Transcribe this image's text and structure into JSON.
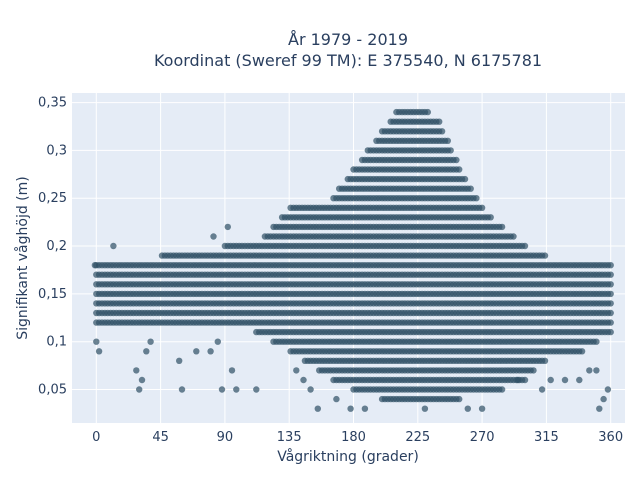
{
  "chart_data": {
    "type": "scatter",
    "title": [
      "År 1979 - 2019",
      "Koordinat (Sweref 99 TM): E 375540, N 6175781"
    ],
    "xlabel": "Vågriktning (grader)",
    "ylabel": "Signifikant våghöjd (m)",
    "xlim": [
      -17,
      370
    ],
    "ylim": [
      0.015,
      0.36
    ],
    "xticks": [
      0,
      45,
      90,
      135,
      180,
      225,
      270,
      315,
      360
    ],
    "xtick_labels": [
      "0",
      "45",
      "90",
      "135",
      "180",
      "225",
      "270",
      "315",
      "360"
    ],
    "yticks": [
      0.05,
      0.1,
      0.15,
      0.2,
      0.25,
      0.3,
      0.35
    ],
    "ytick_labels": [
      "0,05",
      "0,1",
      "0,15",
      "0,2",
      "0,25",
      "0,3",
      "0,35"
    ],
    "grid": true,
    "marker_color": "#2f5065",
    "plot_bg": "#e5ecf6",
    "x_step_degrees": 2,
    "y_step_m": 0.01,
    "envelope": {
      "x": [
        0,
        45,
        90,
        112,
        135,
        165,
        180,
        200,
        210,
        225,
        240,
        255,
        270,
        285,
        300,
        315,
        340,
        360
      ],
      "y_max": [
        0.18,
        0.19,
        0.2,
        0.2,
        0.24,
        0.25,
        0.28,
        0.32,
        0.34,
        0.35,
        0.33,
        0.28,
        0.24,
        0.22,
        0.2,
        0.19,
        0.18,
        0.18
      ],
      "y_min": [
        0.12,
        0.12,
        0.12,
        0.11,
        0.09,
        0.06,
        0.05,
        0.04,
        0.04,
        0.03,
        0.04,
        0.04,
        0.05,
        0.05,
        0.06,
        0.08,
        0.09,
        0.11
      ]
    },
    "outliers": [
      [
        -1,
        0.18
      ],
      [
        0,
        0.1
      ],
      [
        2,
        0.09
      ],
      [
        12,
        0.2
      ],
      [
        28,
        0.07
      ],
      [
        30,
        0.05
      ],
      [
        32,
        0.06
      ],
      [
        35,
        0.09
      ],
      [
        38,
        0.1
      ],
      [
        58,
        0.08
      ],
      [
        60,
        0.05
      ],
      [
        70,
        0.09
      ],
      [
        80,
        0.09
      ],
      [
        82,
        0.21
      ],
      [
        85,
        0.1
      ],
      [
        88,
        0.05
      ],
      [
        92,
        0.22
      ],
      [
        95,
        0.07
      ],
      [
        98,
        0.05
      ],
      [
        112,
        0.05
      ],
      [
        140,
        0.07
      ],
      [
        145,
        0.06
      ],
      [
        150,
        0.05
      ],
      [
        155,
        0.03
      ],
      [
        168,
        0.04
      ],
      [
        178,
        0.03
      ],
      [
        188,
        0.03
      ],
      [
        230,
        0.03
      ],
      [
        260,
        0.03
      ],
      [
        270,
        0.03
      ],
      [
        295,
        0.06
      ],
      [
        312,
        0.05
      ],
      [
        318,
        0.06
      ],
      [
        328,
        0.06
      ],
      [
        338,
        0.06
      ],
      [
        345,
        0.07
      ],
      [
        350,
        0.07
      ],
      [
        352,
        0.03
      ],
      [
        355,
        0.04
      ],
      [
        358,
        0.05
      ]
    ]
  }
}
